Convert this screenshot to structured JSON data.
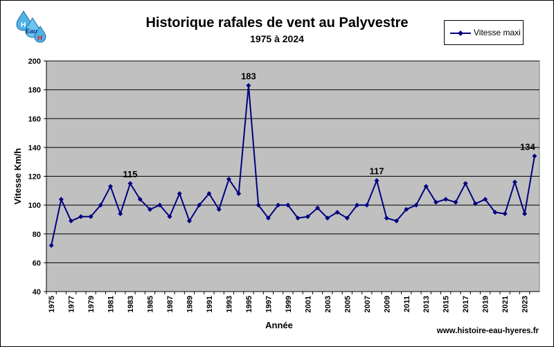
{
  "logo": {
    "letters": [
      "H",
      "Eau",
      "H"
    ],
    "icon": "water-drops-logo-icon"
  },
  "footer": {
    "website": "www.histoire-eau-hyeres.fr"
  },
  "colors": {
    "plot_bg": "#c0c0c0",
    "series": "#000080",
    "grid": "#000000"
  },
  "chart_data": {
    "type": "line",
    "title": "Historique rafales de vent au Palyvestre",
    "subtitle": "1975 à 2024",
    "xlabel": "Année",
    "ylabel": "Vitesse Km/h",
    "ylim": [
      40,
      200
    ],
    "yticks": [
      40,
      60,
      80,
      100,
      120,
      140,
      160,
      180,
      200
    ],
    "xtick_labels": [
      "1975",
      "1977",
      "1979",
      "1981",
      "1983",
      "1985",
      "1987",
      "1989",
      "1991",
      "1993",
      "1995",
      "1997",
      "1999",
      "2001",
      "2003",
      "2005",
      "2007",
      "2009",
      "2011",
      "2013",
      "2015",
      "2017",
      "2019",
      "2021",
      "2023"
    ],
    "grid": "horizontal",
    "legend_position": "top-right",
    "x": [
      1975,
      1976,
      1977,
      1978,
      1979,
      1980,
      1981,
      1982,
      1983,
      1984,
      1985,
      1986,
      1987,
      1988,
      1989,
      1990,
      1991,
      1992,
      1993,
      1994,
      1995,
      1996,
      1997,
      1998,
      1999,
      2000,
      2001,
      2002,
      2003,
      2004,
      2005,
      2006,
      2007,
      2008,
      2009,
      2010,
      2011,
      2012,
      2013,
      2014,
      2015,
      2016,
      2017,
      2018,
      2019,
      2020,
      2021,
      2022,
      2023,
      2024
    ],
    "series": [
      {
        "name": "Vitesse maxi",
        "values": [
          72,
          104,
          89,
          92,
          92,
          100,
          113,
          94,
          115,
          104,
          97,
          100,
          92,
          108,
          89,
          100,
          108,
          97,
          118,
          108,
          183,
          100,
          91,
          100,
          100,
          91,
          92,
          98,
          91,
          95,
          91,
          100,
          100,
          117,
          91,
          89,
          97,
          100,
          113,
          102,
          104,
          102,
          115,
          101,
          104,
          95,
          94,
          116,
          94,
          134
        ]
      }
    ],
    "annotations": [
      {
        "x": 1983,
        "y": 115,
        "text": "115"
      },
      {
        "x": 1995,
        "y": 183,
        "text": "183"
      },
      {
        "x": 2008,
        "y": 117,
        "text": "117"
      },
      {
        "x": 2024,
        "y": 134,
        "text": "134"
      }
    ]
  }
}
